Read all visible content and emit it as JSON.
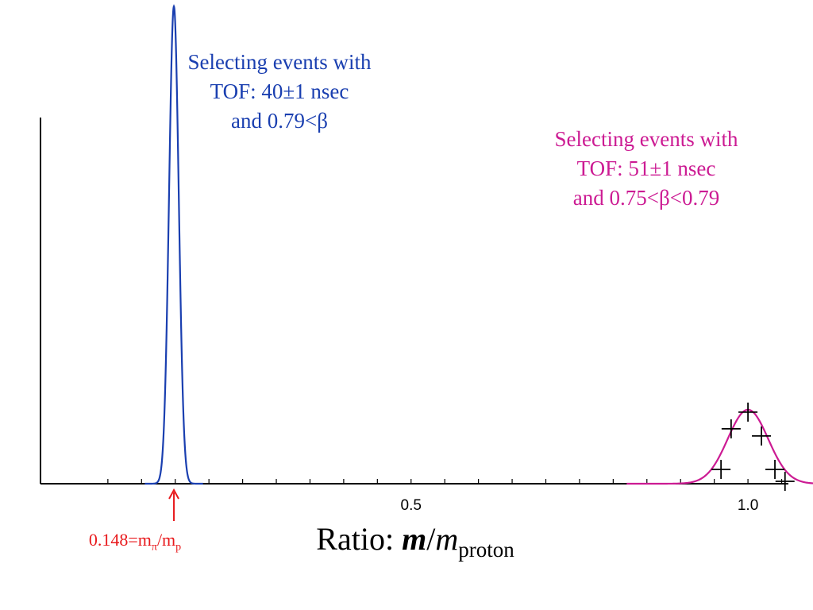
{
  "chart_data": {
    "type": "line",
    "xlabel_prefix": "Ratio: ",
    "xlabel_m1": "m",
    "xlabel_slash": "/",
    "xlabel_m2": "m",
    "xlabel_sub": "proton",
    "ylabel": "",
    "xlim": [
      -0.05,
      1.06
    ],
    "ylim": [
      0,
      1.0
    ],
    "x_ticks_minor": [
      0.05,
      0.1,
      0.15,
      0.2,
      0.25,
      0.3,
      0.35,
      0.4,
      0.45,
      0.5,
      0.55,
      0.6,
      0.65,
      0.7,
      0.75,
      0.8,
      0.85,
      0.9,
      0.95,
      1.0,
      1.05
    ],
    "x_tick_labels": [
      {
        "value": 0.5,
        "label": "0.5"
      },
      {
        "value": 1.0,
        "label": "1.0"
      }
    ],
    "series": [
      {
        "name": "",
        "color": "#1a3fb0",
        "kind": "gaussian",
        "mu": 0.148,
        "sigma": 0.0072,
        "amplitude": 1.0
      },
      {
        "name": "",
        "color": "#cc1b93",
        "kind": "fit",
        "mu": 1.0,
        "sigma": 0.03,
        "amplitude": 0.155,
        "points": [
          {
            "x": 0.96,
            "y": 0.03
          },
          {
            "x": 0.975,
            "y": 0.115
          },
          {
            "x": 1.0,
            "y": 0.15
          },
          {
            "x": 1.02,
            "y": 0.1
          },
          {
            "x": 1.04,
            "y": 0.03
          },
          {
            "x": 1.055,
            "y": 0.005
          }
        ]
      }
    ],
    "annotations": {
      "blue": [
        "Selecting events with",
        "TOF: 40±1 nsec",
        "and 0.79<β"
      ],
      "magenta": [
        "Selecting events with",
        "TOF: 51±1 nsec",
        "and 0.75<β<0.79"
      ],
      "pion_marker_x": 0.148,
      "pion_label_prefix": "0.148=m",
      "pion_label_sub1": "π",
      "pion_label_slash": "/m",
      "pion_label_sub2": "p"
    },
    "colors": {
      "blue": "#1a3fb0",
      "magenta": "#cc1b93",
      "red": "#e8191c",
      "axis": "#000000"
    }
  }
}
